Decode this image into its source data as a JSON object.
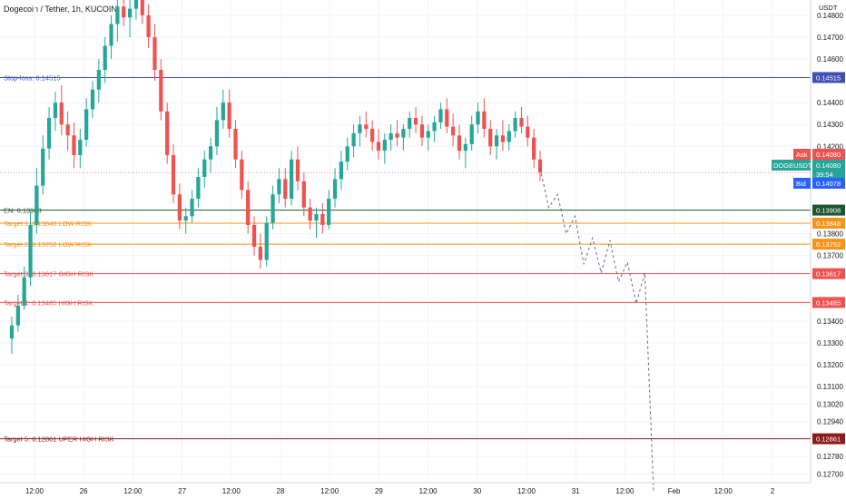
{
  "header": {
    "title": "Dogecoin / Tether, 1h, KUCOIN"
  },
  "axis": {
    "currency": "USDT"
  },
  "chart_data": {
    "type": "candlestick",
    "symbol": "DOGEUSDT",
    "ylim": [
      0.1266,
      0.1487
    ],
    "y_ticks": [
      "0.14800",
      "0.14700",
      "0.14600",
      "0.14400",
      "0.14300",
      "0.14200",
      "0.13800",
      "0.13700",
      "0.13400",
      "0.13300",
      "0.13200",
      "0.13100",
      "0.13020",
      "0.12940",
      "0.12780",
      "0.12700"
    ],
    "x_ticks": [
      "12:00",
      "26",
      "12:00",
      "27",
      "12:00",
      "28",
      "12:00",
      "29",
      "12:00",
      "30",
      "12:00",
      "31",
      "12:00",
      "Feb",
      "12:00",
      "2"
    ],
    "candles": [
      [
        0.1332,
        0.1342,
        0.1325,
        0.1338
      ],
      [
        0.1338,
        0.1352,
        0.1335,
        0.1347
      ],
      [
        0.1347,
        0.1365,
        0.1345,
        0.136
      ],
      [
        0.136,
        0.139,
        0.1356,
        0.1384
      ],
      [
        0.1384,
        0.141,
        0.138,
        0.1402
      ],
      [
        0.1402,
        0.1425,
        0.1398,
        0.1419
      ],
      [
        0.1419,
        0.1438,
        0.1414,
        0.1433
      ],
      [
        0.1433,
        0.1445,
        0.1427,
        0.144
      ],
      [
        0.144,
        0.1448,
        0.1425,
        0.143
      ],
      [
        0.143,
        0.1436,
        0.1418,
        0.1425
      ],
      [
        0.1425,
        0.1431,
        0.141,
        0.1416
      ],
      [
        0.1416,
        0.1428,
        0.141,
        0.1423
      ],
      [
        0.1423,
        0.1442,
        0.142,
        0.1437
      ],
      [
        0.1437,
        0.145,
        0.1433,
        0.1446
      ],
      [
        0.1446,
        0.146,
        0.144,
        0.1455
      ],
      [
        0.1455,
        0.147,
        0.1449,
        0.1466
      ],
      [
        0.1466,
        0.148,
        0.146,
        0.1476
      ],
      [
        0.1476,
        0.1488,
        0.1468,
        0.1484
      ],
      [
        0.1484,
        0.1492,
        0.1475,
        0.1479
      ],
      [
        0.1479,
        0.1488,
        0.147,
        0.1483
      ],
      [
        0.1483,
        0.149,
        0.1478,
        0.1487
      ],
      [
        0.1487,
        0.149,
        0.1476,
        0.148
      ],
      [
        0.148,
        0.1485,
        0.1465,
        0.147
      ],
      [
        0.147,
        0.1476,
        0.145,
        0.1455
      ],
      [
        0.1455,
        0.146,
        0.1432,
        0.1436
      ],
      [
        0.1436,
        0.144,
        0.1412,
        0.1416
      ],
      [
        0.1416,
        0.1421,
        0.1394,
        0.1398
      ],
      [
        0.1398,
        0.1403,
        0.1382,
        0.1386
      ],
      [
        0.1386,
        0.1392,
        0.138,
        0.1388
      ],
      [
        0.1388,
        0.14,
        0.1385,
        0.1396
      ],
      [
        0.1396,
        0.141,
        0.1392,
        0.1406
      ],
      [
        0.1406,
        0.1418,
        0.1401,
        0.1414
      ],
      [
        0.1414,
        0.1424,
        0.1408,
        0.142
      ],
      [
        0.142,
        0.1438,
        0.1416,
        0.1432
      ],
      [
        0.1432,
        0.1446,
        0.1428,
        0.144
      ],
      [
        0.144,
        0.1446,
        0.1424,
        0.1428
      ],
      [
        0.1428,
        0.1432,
        0.141,
        0.1414
      ],
      [
        0.1414,
        0.1418,
        0.1396,
        0.14
      ],
      [
        0.14,
        0.1404,
        0.138,
        0.1384
      ],
      [
        0.1384,
        0.1388,
        0.137,
        0.1374
      ],
      [
        0.1374,
        0.138,
        0.1364,
        0.1368
      ],
      [
        0.1368,
        0.1388,
        0.1365,
        0.1385
      ],
      [
        0.1385,
        0.1402,
        0.1382,
        0.1398
      ],
      [
        0.1398,
        0.141,
        0.1394,
        0.1405
      ],
      [
        0.1405,
        0.141,
        0.1392,
        0.1396
      ],
      [
        0.1396,
        0.1418,
        0.1393,
        0.1414
      ],
      [
        0.1414,
        0.142,
        0.14,
        0.1404
      ],
      [
        0.1404,
        0.1408,
        0.1388,
        0.1392
      ],
      [
        0.1392,
        0.1396,
        0.1382,
        0.1386
      ],
      [
        0.1386,
        0.1392,
        0.1378,
        0.1389
      ],
      [
        0.1389,
        0.1394,
        0.138,
        0.1384
      ],
      [
        0.1384,
        0.14,
        0.1382,
        0.1396
      ],
      [
        0.1396,
        0.141,
        0.1392,
        0.1405
      ],
      [
        0.1405,
        0.1418,
        0.14,
        0.1413
      ],
      [
        0.1413,
        0.1424,
        0.1409,
        0.142
      ],
      [
        0.142,
        0.143,
        0.1415,
        0.1426
      ],
      [
        0.1426,
        0.1434,
        0.142,
        0.143
      ],
      [
        0.143,
        0.1436,
        0.1424,
        0.1428
      ],
      [
        0.1428,
        0.1432,
        0.1418,
        0.1422
      ],
      [
        0.1422,
        0.1428,
        0.1414,
        0.1418
      ],
      [
        0.1418,
        0.1426,
        0.1412,
        0.1423
      ],
      [
        0.1423,
        0.143,
        0.1418,
        0.1426
      ],
      [
        0.1426,
        0.1432,
        0.142,
        0.1424
      ],
      [
        0.1424,
        0.143,
        0.1418,
        0.1428
      ],
      [
        0.1428,
        0.1436,
        0.1424,
        0.1433
      ],
      [
        0.1433,
        0.1438,
        0.1426,
        0.143
      ],
      [
        0.143,
        0.1434,
        0.142,
        0.1424
      ],
      [
        0.1424,
        0.143,
        0.1418,
        0.1427
      ],
      [
        0.1427,
        0.1434,
        0.1422,
        0.1431
      ],
      [
        0.1431,
        0.144,
        0.1428,
        0.1437
      ],
      [
        0.1437,
        0.1442,
        0.1426,
        0.1429
      ],
      [
        0.1429,
        0.1435,
        0.142,
        0.1425
      ],
      [
        0.1425,
        0.143,
        0.1414,
        0.1418
      ],
      [
        0.1418,
        0.1424,
        0.141,
        0.1421
      ],
      [
        0.1421,
        0.1434,
        0.1418,
        0.143
      ],
      [
        0.143,
        0.144,
        0.1426,
        0.1436
      ],
      [
        0.1436,
        0.1442,
        0.1424,
        0.1428
      ],
      [
        0.1428,
        0.1432,
        0.1416,
        0.142
      ],
      [
        0.142,
        0.1428,
        0.1414,
        0.1425
      ],
      [
        0.1425,
        0.1432,
        0.1418,
        0.1422
      ],
      [
        0.1422,
        0.143,
        0.1418,
        0.1427
      ],
      [
        0.1427,
        0.1436,
        0.1424,
        0.1433
      ],
      [
        0.1433,
        0.1438,
        0.1426,
        0.1429
      ],
      [
        0.1429,
        0.1434,
        0.142,
        0.1424
      ],
      [
        0.1424,
        0.1428,
        0.141,
        0.1414
      ],
      [
        0.1414,
        0.1418,
        0.1404,
        0.1408
      ]
    ],
    "levels": [
      {
        "label": "Stop-loss: 0.14515",
        "value": 0.14515,
        "price": "0.14515",
        "color": "#3f51b5"
      },
      {
        "label": "EN: 0.13908",
        "value": 0.13908,
        "price": "0.13908",
        "color": "#1e5631"
      },
      {
        "label": "Target 1: 0.13848 LOW RISK",
        "value": 0.13848,
        "price": "0.13848",
        "color": "#f7931a"
      },
      {
        "label": "Target 2: 0.13752 LOW RISK",
        "value": 0.13752,
        "price": "0.13752",
        "color": "#f7931a"
      },
      {
        "label": "Target 3: 0.13617 GIGH RISK",
        "value": 0.13617,
        "price": "0.13617",
        "color": "#ef5350"
      },
      {
        "label": "Target 4: 0.13485  HIGH RISK",
        "value": 0.13485,
        "price": "0.13485",
        "color": "#ef5350"
      },
      {
        "label": "Target 5: 0.12861 UPER HIGH RISK",
        "value": 0.12861,
        "price": "0.12861",
        "color": "#8b1c1c"
      }
    ],
    "projection": [
      0.141,
      0.1392,
      0.1398,
      0.138,
      0.1388,
      0.1366,
      0.1378,
      0.1362,
      0.1377,
      0.1358,
      0.1367,
      0.1348,
      0.1362,
      0.1262
    ],
    "quote": {
      "ask_label": "Ask",
      "ask": "0.14080",
      "symbol": "DOGEUSDT",
      "last": "0.14080",
      "countdown": "39:54",
      "bid_label": "Bid",
      "bid": "0.14078",
      "value": 0.1408
    },
    "colors": {
      "up": "#26a69a",
      "down": "#ef5350",
      "ask": "#ef5350",
      "bid": "#2962ff",
      "last": "#26a69a",
      "projection": "#5b6b8c"
    }
  }
}
